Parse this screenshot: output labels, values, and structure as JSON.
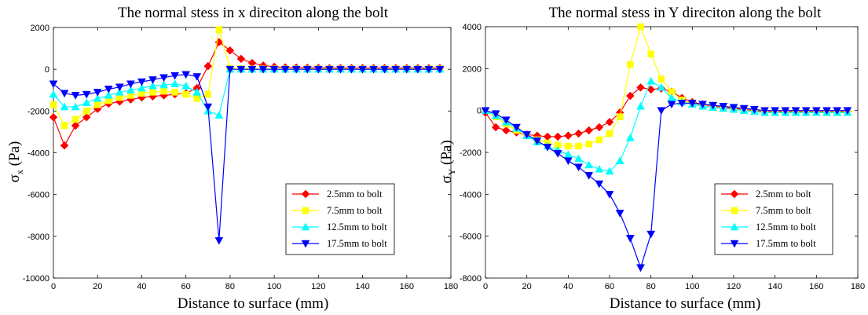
{
  "chart_data": [
    {
      "type": "line",
      "title": "The normal stess in x direciton along the bolt",
      "xlabel": "Distance to surface (mm)",
      "ylabel_symbol": "σ",
      "ylabel_sub": "x",
      "ylabel_unit": " (Pa)",
      "xlim": [
        0,
        180
      ],
      "ylim": [
        -10000,
        2000
      ],
      "xticks": [
        0,
        20,
        40,
        60,
        80,
        100,
        120,
        140,
        160,
        180
      ],
      "yticks": [
        -10000,
        -8000,
        -6000,
        -4000,
        -2000,
        0,
        2000
      ],
      "grid": false,
      "legend_position": "lower-right",
      "series": [
        {
          "name": "2.5mm to bolt",
          "color": "#ff0000",
          "marker": "diamond",
          "x": [
            0,
            5,
            10,
            15,
            20,
            25,
            30,
            35,
            40,
            45,
            50,
            55,
            60,
            65,
            70,
            75,
            80,
            85,
            90,
            95,
            100,
            105,
            110,
            115,
            120,
            125,
            130,
            135,
            140,
            145,
            150,
            155,
            160,
            165,
            170,
            175
          ],
          "y": [
            -2300,
            -3650,
            -2700,
            -2300,
            -1900,
            -1650,
            -1550,
            -1450,
            -1350,
            -1300,
            -1250,
            -1200,
            -1150,
            -900,
            150,
            1300,
            900,
            500,
            300,
            180,
            120,
            90,
            80,
            70,
            70,
            60,
            60,
            60,
            60,
            60,
            60,
            60,
            60,
            60,
            60,
            60
          ]
        },
        {
          "name": "7.5mm to bolt",
          "color": "#ffff00",
          "marker": "square",
          "x": [
            0,
            5,
            10,
            15,
            20,
            25,
            30,
            35,
            40,
            45,
            50,
            55,
            60,
            65,
            70,
            75,
            80,
            85,
            90,
            95,
            100,
            105,
            110,
            115,
            120,
            125,
            130,
            135,
            140,
            145,
            150,
            155,
            160,
            165,
            170,
            175
          ],
          "y": [
            -1700,
            -2700,
            -2400,
            -2000,
            -1700,
            -1500,
            -1350,
            -1250,
            -1150,
            -1100,
            -1050,
            -1100,
            -1200,
            -1400,
            -1200,
            1900,
            50,
            30,
            20,
            20,
            20,
            20,
            20,
            20,
            20,
            20,
            20,
            20,
            20,
            20,
            20,
            20,
            20,
            20,
            20,
            20
          ]
        },
        {
          "name": "12.5mm to bolt",
          "color": "#00ffff",
          "marker": "triangle-up",
          "x": [
            0,
            5,
            10,
            15,
            20,
            25,
            30,
            35,
            40,
            45,
            50,
            55,
            60,
            65,
            70,
            75,
            80,
            85,
            90,
            95,
            100,
            105,
            110,
            115,
            120,
            125,
            130,
            135,
            140,
            145,
            150,
            155,
            160,
            165,
            170,
            175
          ],
          "y": [
            -1200,
            -1800,
            -1800,
            -1600,
            -1400,
            -1250,
            -1100,
            -1000,
            -900,
            -800,
            -750,
            -700,
            -800,
            -1100,
            -2000,
            -2200,
            0,
            0,
            0,
            0,
            0,
            0,
            0,
            0,
            0,
            0,
            0,
            0,
            0,
            0,
            0,
            0,
            0,
            0,
            0,
            0
          ]
        },
        {
          "name": "17.5mm to bolt",
          "color": "#0000ff",
          "marker": "triangle-down",
          "x": [
            0,
            5,
            10,
            15,
            20,
            25,
            30,
            35,
            40,
            45,
            50,
            55,
            60,
            65,
            70,
            75,
            80,
            85,
            90,
            95,
            100,
            105,
            110,
            115,
            120,
            125,
            130,
            135,
            140,
            145,
            150,
            155,
            160,
            165,
            170,
            175
          ],
          "y": [
            -700,
            -1150,
            -1250,
            -1200,
            -1100,
            -950,
            -850,
            -700,
            -600,
            -500,
            -400,
            -300,
            -250,
            -350,
            -1800,
            -8200,
            0,
            0,
            0,
            0,
            0,
            0,
            0,
            0,
            0,
            0,
            0,
            0,
            0,
            0,
            0,
            0,
            0,
            0,
            0,
            0
          ]
        }
      ]
    },
    {
      "type": "line",
      "title": "The normal stess in Y direciton along the bolt",
      "xlabel": "Distance to surface (mm)",
      "ylabel_symbol": "σ",
      "ylabel_sub": "Y",
      "ylabel_unit": " (Pa)",
      "xlim": [
        0,
        180
      ],
      "ylim": [
        -8000,
        4000
      ],
      "xticks": [
        0,
        20,
        40,
        60,
        80,
        100,
        120,
        140,
        160,
        180
      ],
      "yticks": [
        -8000,
        -6000,
        -4000,
        -2000,
        0,
        2000,
        4000
      ],
      "grid": false,
      "legend_position": "lower-right",
      "series": [
        {
          "name": "2.5mm to bolt",
          "color": "#ff0000",
          "marker": "diamond",
          "x": [
            0,
            5,
            10,
            15,
            20,
            25,
            30,
            35,
            40,
            45,
            50,
            55,
            60,
            65,
            70,
            75,
            80,
            85,
            90,
            95,
            100,
            105,
            110,
            115,
            120,
            125,
            130,
            135,
            140,
            145,
            150,
            155,
            160,
            165,
            170,
            175
          ],
          "y": [
            -100,
            -800,
            -950,
            -1050,
            -1150,
            -1200,
            -1250,
            -1250,
            -1200,
            -1100,
            -950,
            -800,
            -550,
            -100,
            700,
            1100,
            1000,
            1050,
            900,
            600,
            400,
            300,
            200,
            150,
            100,
            50,
            0,
            -50,
            -50,
            -50,
            -50,
            -50,
            -50,
            -50,
            -50,
            -50
          ]
        },
        {
          "name": "7.5mm to bolt",
          "color": "#ffff00",
          "marker": "square",
          "x": [
            0,
            5,
            10,
            15,
            20,
            25,
            30,
            35,
            40,
            45,
            50,
            55,
            60,
            65,
            70,
            75,
            80,
            85,
            90,
            95,
            100,
            105,
            110,
            115,
            120,
            125,
            130,
            135,
            140,
            145,
            150,
            155,
            160,
            165,
            170,
            175
          ],
          "y": [
            0,
            -300,
            -650,
            -950,
            -1200,
            -1400,
            -1550,
            -1650,
            -1700,
            -1700,
            -1600,
            -1400,
            -1100,
            -300,
            2200,
            4000,
            2700,
            1500,
            900,
            500,
            300,
            200,
            150,
            100,
            50,
            0,
            -50,
            -100,
            -100,
            -100,
            -100,
            -100,
            -100,
            -100,
            -100,
            -100
          ]
        },
        {
          "name": "12.5mm to bolt",
          "color": "#00ffff",
          "marker": "triangle-up",
          "x": [
            0,
            5,
            10,
            15,
            20,
            25,
            30,
            35,
            40,
            45,
            50,
            55,
            60,
            65,
            70,
            75,
            80,
            85,
            90,
            95,
            100,
            105,
            110,
            115,
            120,
            125,
            130,
            135,
            140,
            145,
            150,
            155,
            160,
            165,
            170,
            175
          ],
          "y": [
            0,
            -250,
            -550,
            -850,
            -1200,
            -1500,
            -1700,
            -1900,
            -2100,
            -2300,
            -2600,
            -2800,
            -2900,
            -2400,
            -1300,
            200,
            1400,
            1100,
            600,
            400,
            300,
            200,
            150,
            100,
            50,
            0,
            -50,
            -100,
            -100,
            -100,
            -100,
            -100,
            -100,
            -100,
            -100,
            -100
          ]
        },
        {
          "name": "17.5mm to bolt",
          "color": "#0000ff",
          "marker": "triangle-down",
          "x": [
            0,
            5,
            10,
            15,
            20,
            25,
            30,
            35,
            40,
            45,
            50,
            55,
            60,
            65,
            70,
            75,
            80,
            85,
            90,
            95,
            100,
            105,
            110,
            115,
            120,
            125,
            130,
            135,
            140,
            145,
            150,
            155,
            160,
            165,
            170,
            175
          ],
          "y": [
            0,
            -150,
            -450,
            -800,
            -1150,
            -1450,
            -1750,
            -2050,
            -2400,
            -2700,
            -3100,
            -3500,
            -4000,
            -4900,
            -6100,
            -7500,
            -5900,
            0,
            300,
            350,
            350,
            300,
            250,
            200,
            150,
            100,
            50,
            0,
            0,
            0,
            0,
            0,
            0,
            0,
            0,
            0
          ]
        }
      ]
    }
  ]
}
